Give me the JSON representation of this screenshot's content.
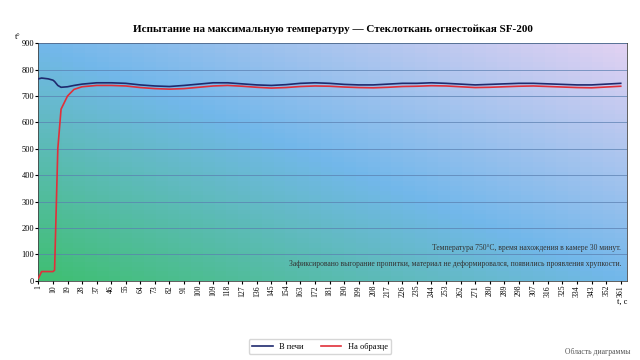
{
  "chart_data": {
    "type": "line",
    "title": "Испытание на максимальную температуру — Стеклоткань огнестойкая SF-200",
    "x_label": "t, c",
    "y_label": "t°",
    "x": [
      1,
      3,
      7,
      10,
      11,
      13,
      15,
      19,
      23,
      28,
      37,
      46,
      55,
      64,
      73,
      82,
      91,
      100,
      109,
      118,
      127,
      136,
      145,
      154,
      163,
      172,
      181,
      190,
      199,
      208,
      217,
      226,
      235,
      244,
      253,
      262,
      271,
      280,
      289,
      298,
      307,
      316,
      325,
      334,
      343,
      352,
      361
    ],
    "series": [
      {
        "name": "В печи",
        "color": "#1f2a6e",
        "values": [
          765,
          768,
          765,
          760,
          755,
          740,
          733,
          735,
          740,
          745,
          750,
          750,
          748,
          742,
          738,
          736,
          740,
          745,
          750,
          750,
          746,
          742,
          740,
          743,
          748,
          750,
          748,
          744,
          742,
          742,
          745,
          748,
          748,
          750,
          748,
          745,
          742,
          744,
          746,
          748,
          748,
          746,
          744,
          742,
          742,
          745,
          748
        ]
      },
      {
        "name": "На образце",
        "color": "#e0303a",
        "values": [
          10,
          35,
          35,
          35,
          40,
          500,
          650,
          700,
          725,
          735,
          740,
          740,
          738,
          732,
          728,
          726,
          728,
          733,
          738,
          740,
          737,
          733,
          730,
          732,
          736,
          738,
          737,
          734,
          732,
          731,
          733,
          736,
          737,
          739,
          738,
          735,
          732,
          733,
          735,
          737,
          738,
          736,
          734,
          732,
          731,
          734,
          737
        ]
      }
    ],
    "xlim": [
      1,
      365
    ],
    "xticks": [
      1,
      10,
      19,
      28,
      37,
      46,
      55,
      64,
      73,
      82,
      91,
      100,
      109,
      118,
      127,
      136,
      145,
      154,
      163,
      172,
      181,
      190,
      199,
      208,
      217,
      226,
      235,
      244,
      253,
      262,
      271,
      280,
      289,
      298,
      307,
      316,
      325,
      334,
      343,
      352,
      361
    ],
    "ylim": [
      0,
      900
    ],
    "yticks": [
      0,
      100,
      200,
      300,
      400,
      500,
      600,
      700,
      800,
      900
    ],
    "grid": true,
    "legend": "bottom",
    "annotations": [
      "Температура 750°С, время нахождения в камере 30 минут.",
      "Зафиксировано выгорание пропитки, материал не деформировался, появились проявления хрупкости."
    ],
    "footer": "Область диаграммы"
  }
}
